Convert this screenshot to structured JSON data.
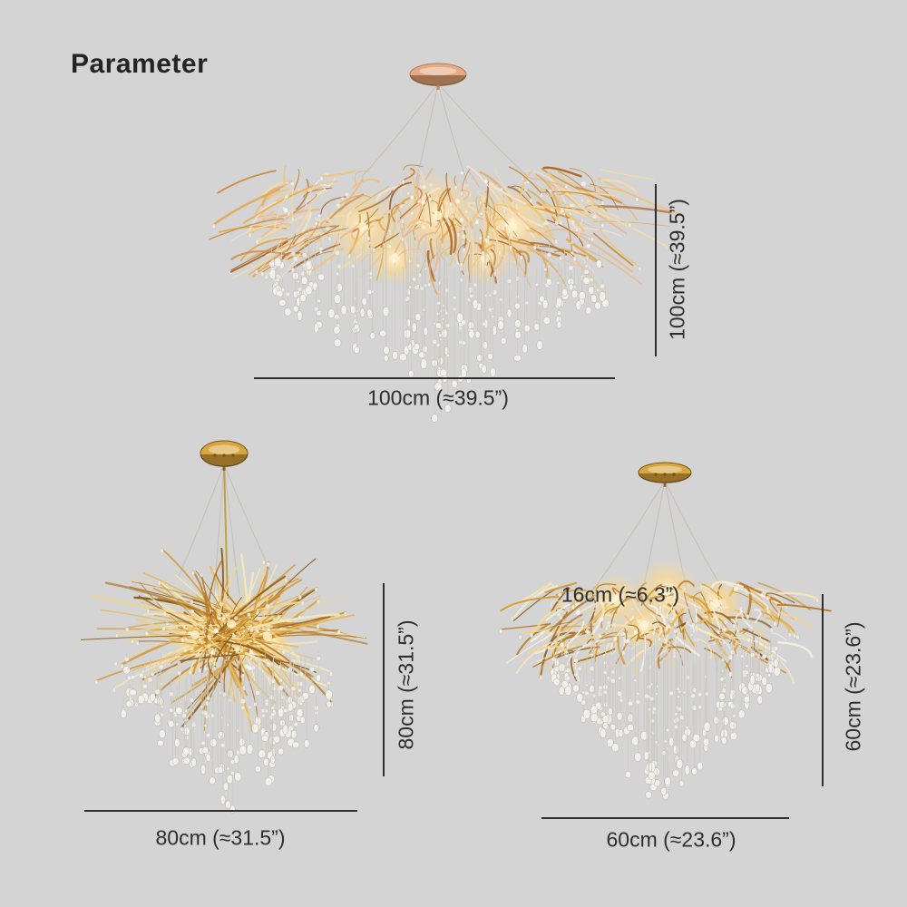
{
  "page": {
    "title": "Parameter"
  },
  "colors": {
    "background": "#d3d4d3",
    "ink": "#2e2e2e",
    "gold": "#d49a36",
    "rose_gold": "#e2a57e",
    "crystal": "#f2efe9",
    "cable": "#c6c0b7"
  },
  "products": [
    {
      "name": "chandelier-100cm",
      "width_label": "100cm (≈39.5”)",
      "height_label": "100cm (≈39.5”)"
    },
    {
      "name": "chandelier-80cm",
      "width_label": "80cm (≈31.5”)",
      "height_label": "80cm (≈31.5”)"
    },
    {
      "name": "chandelier-60cm",
      "width_label": "60cm (≈23.6”)",
      "height_label": "60cm (≈23.6”)",
      "canopy_label": "16cm (≈6.3”)"
    }
  ]
}
